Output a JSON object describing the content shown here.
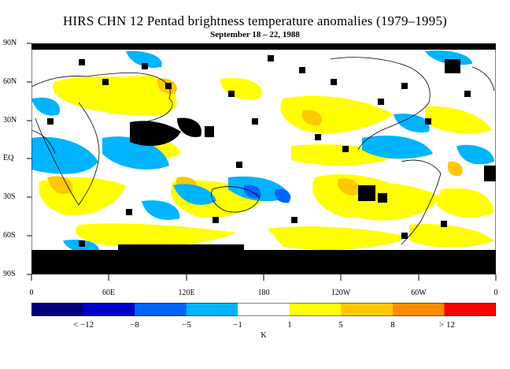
{
  "title": "HIRS CHN 12 Pentad brightness temperature anomalies (1979–1995)",
  "subtitle": "September 18 – 22, 1988",
  "chart_data": {
    "type": "heatmap",
    "title": "HIRS CHN 12 Pentad brightness temperature anomalies (1979–1995)",
    "subtitle": "September 18 – 22, 1988",
    "x_ticks": [
      "0",
      "60E",
      "120E",
      "180",
      "120W",
      "60W",
      "0"
    ],
    "y_ticks": [
      "90N",
      "60N",
      "30N",
      "EQ",
      "30S",
      "60S",
      "90S"
    ],
    "xlim": [
      0,
      360
    ],
    "ylim": [
      -90,
      90
    ],
    "colorbar": {
      "unit": "K",
      "labels": [
        "< −12",
        "−8",
        "−5",
        "−1",
        "1",
        "5",
        "8",
        "> 12"
      ],
      "colors": [
        "#00007f",
        "#0000c8",
        "#0064ff",
        "#00b4ff",
        "#ffffff",
        "#ffff00",
        "#ffc800",
        "#ff8c00",
        "#ff0000"
      ]
    },
    "missing_color": "#000000",
    "land_outline_color": "#000000"
  }
}
